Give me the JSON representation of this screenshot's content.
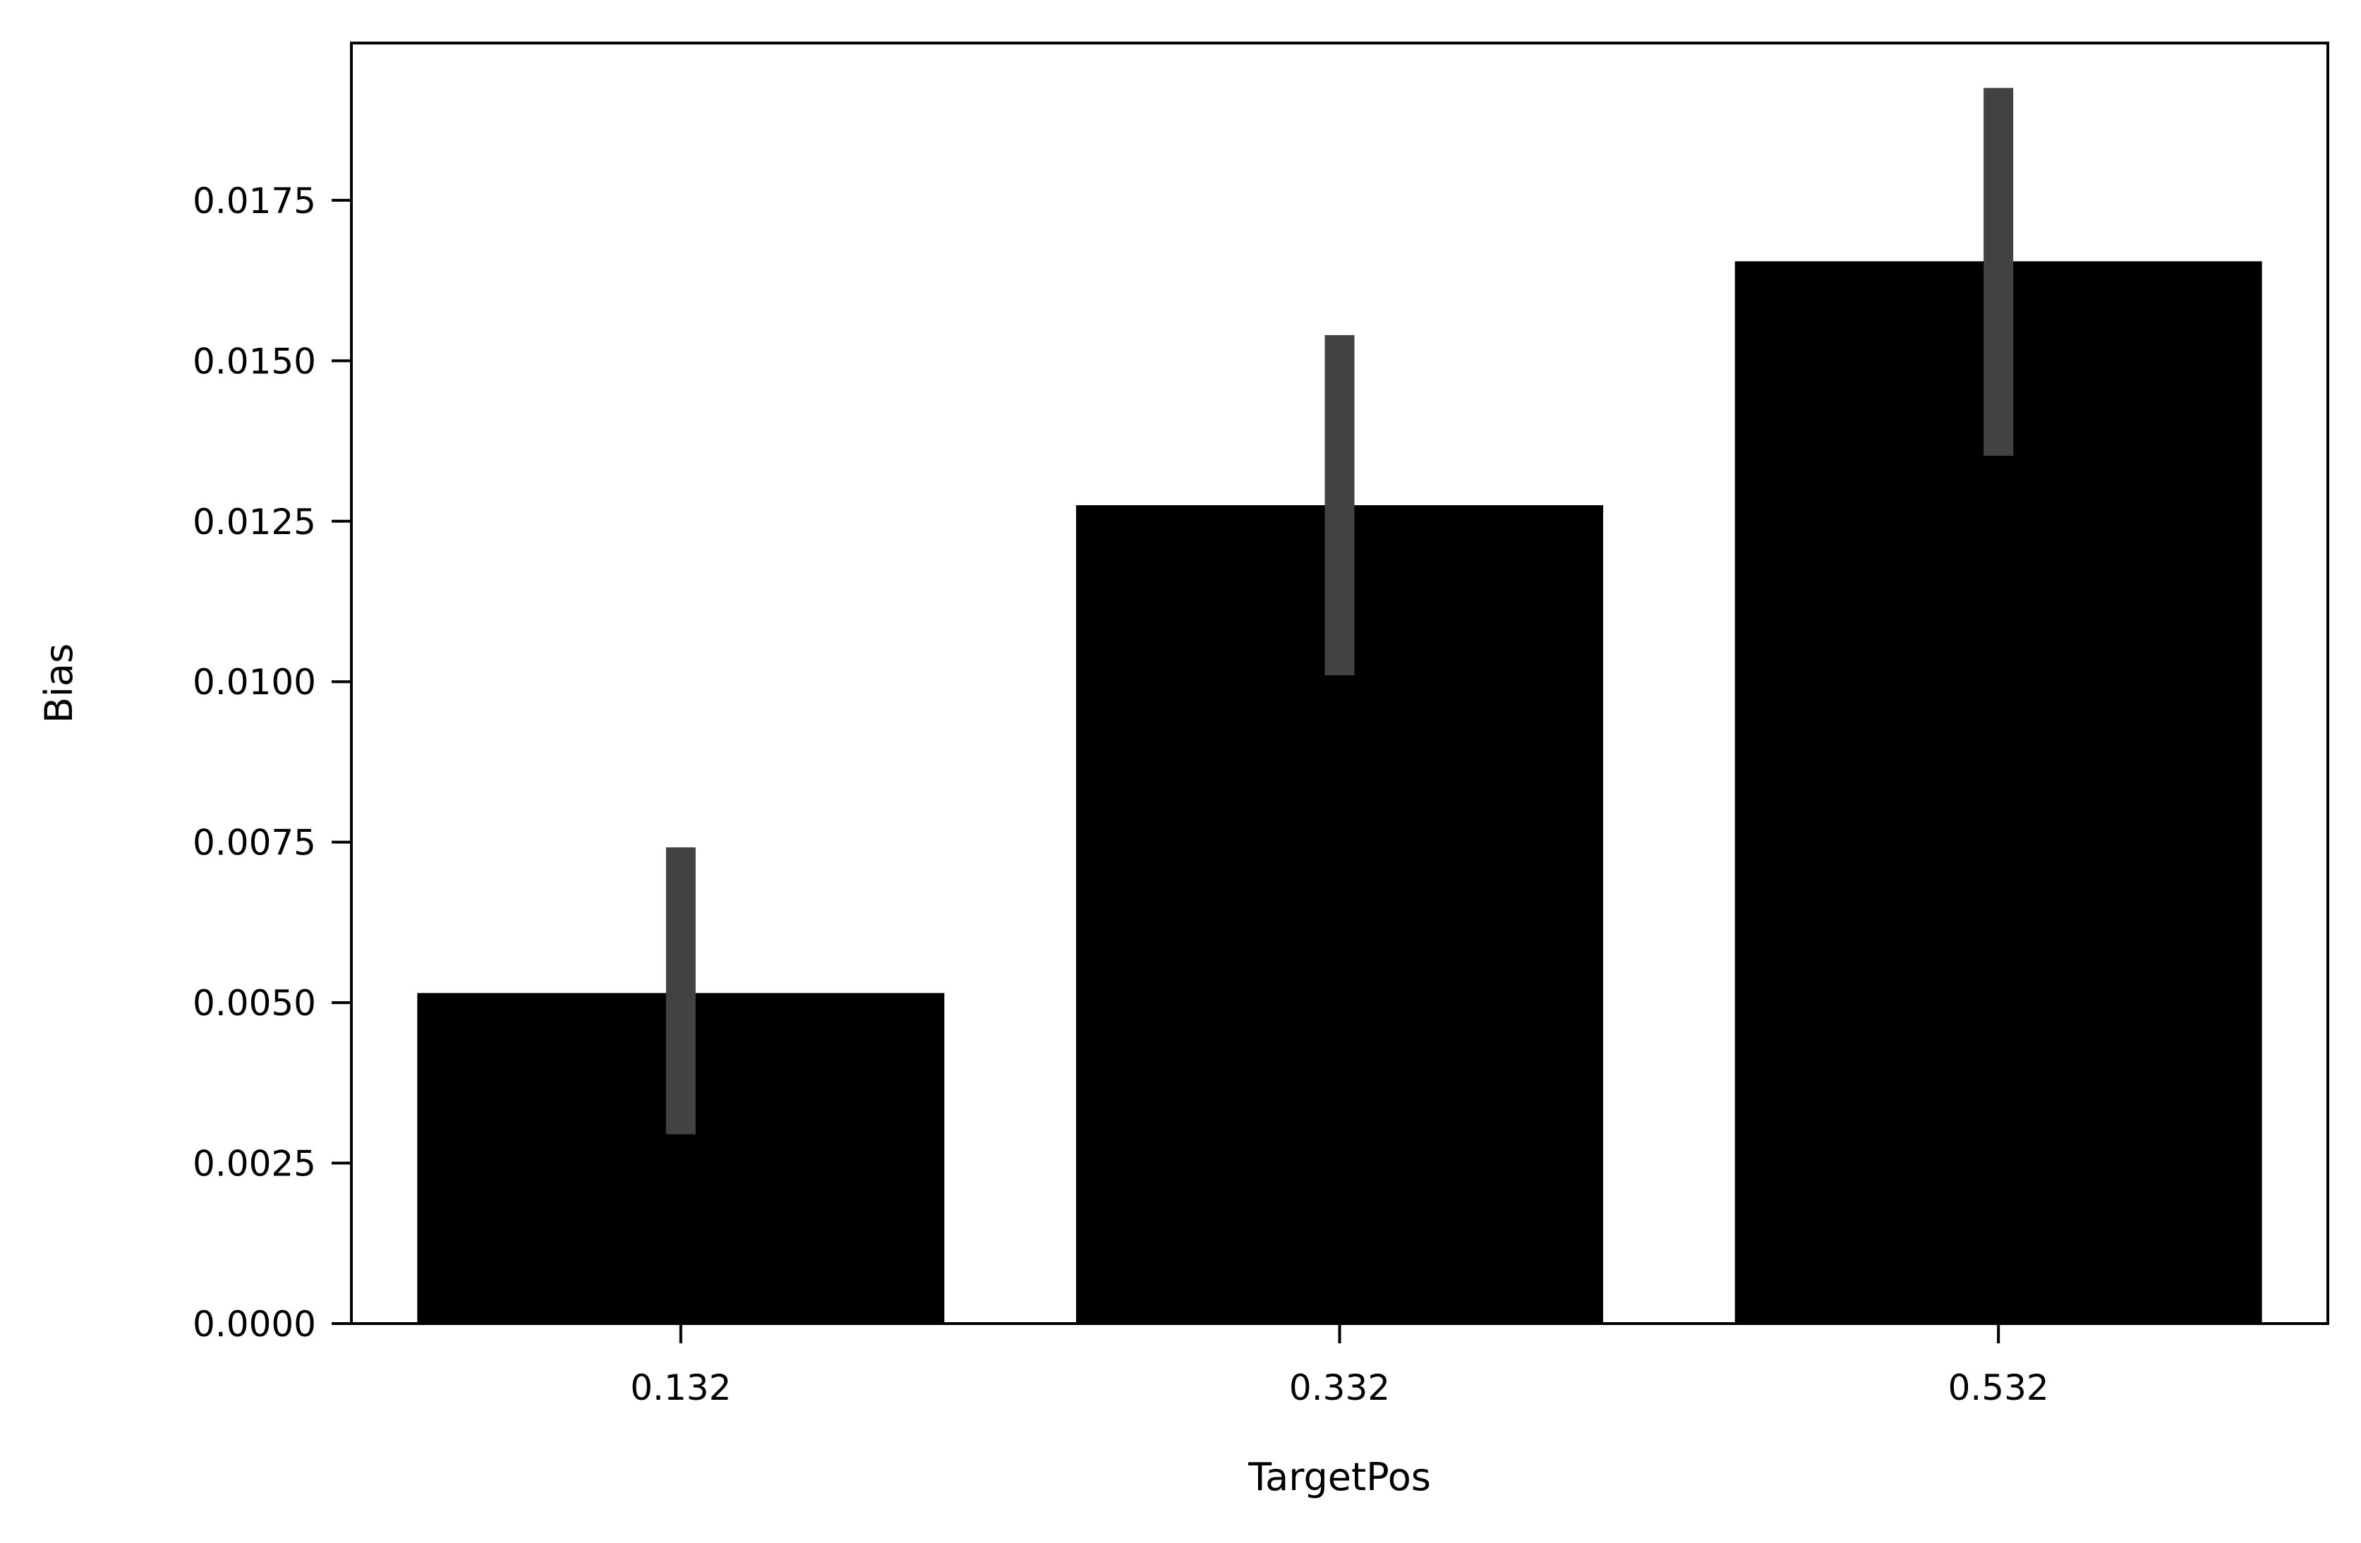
{
  "chart_data": {
    "type": "bar",
    "title": "",
    "xlabel": "TargetPos",
    "ylabel": "Bias",
    "categories": [
      "0.132",
      "0.332",
      "0.532"
    ],
    "values": [
      0.00515,
      0.01275,
      0.01655
    ],
    "error_bars": [
      {
        "low": 0.00295,
        "high": 0.00742
      },
      {
        "low": 0.0101,
        "high": 0.0154
      },
      {
        "low": 0.01352,
        "high": 0.01925
      }
    ],
    "ylim": [
      0.0,
      0.01995
    ],
    "yticks": [
      0.0,
      0.0025,
      0.005,
      0.0075,
      0.01,
      0.0125,
      0.015,
      0.0175
    ],
    "ytick_labels": [
      "0.0000",
      "0.0025",
      "0.0050",
      "0.0075",
      "0.0100",
      "0.0125",
      "0.0150",
      "0.0175"
    ],
    "grid": false,
    "legend": "none",
    "colors": {
      "bar": "#000000",
      "error_bar": "#424242",
      "axes": "#000000"
    }
  }
}
